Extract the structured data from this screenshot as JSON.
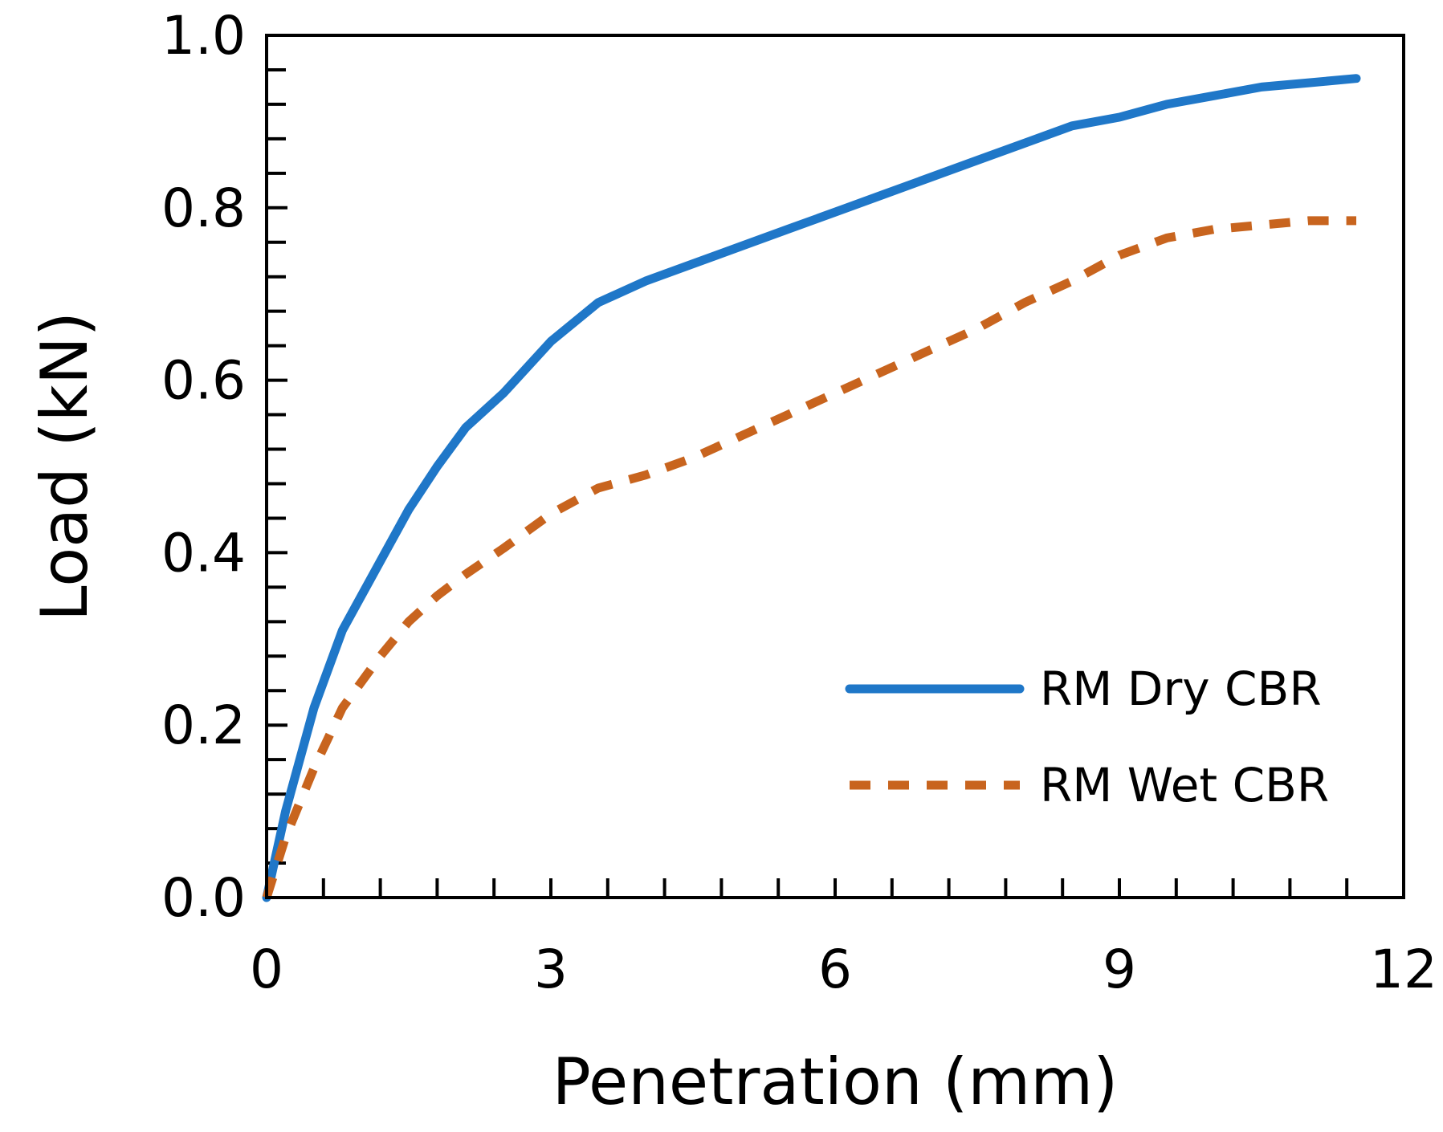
{
  "chart_data": {
    "type": "line",
    "title": "",
    "xlabel": "Penetration (mm)",
    "ylabel": "Load (kN)",
    "xlim": [
      0,
      12
    ],
    "ylim": [
      0,
      1.0
    ],
    "x_ticks": [
      0,
      3,
      6,
      9,
      12
    ],
    "x_tick_labels": [
      "0",
      "3",
      "6",
      "9",
      "12"
    ],
    "x_minor_step": 0.6,
    "y_ticks": [
      0,
      0.2,
      0.4,
      0.6,
      0.8,
      1.0
    ],
    "y_tick_labels": [
      "0.0",
      "0.2",
      "0.4",
      "0.6",
      "0.8",
      "1.0"
    ],
    "y_minor_step": 0.04,
    "grid": false,
    "legend_position": "lower-right",
    "series": [
      {
        "name": "RM Dry CBR",
        "color": "#1f77c8",
        "style": "solid",
        "x": [
          0,
          0.2,
          0.5,
          0.8,
          1.2,
          1.5,
          1.8,
          2.1,
          2.5,
          3.0,
          3.5,
          4.0,
          4.5,
          5.0,
          5.5,
          6.0,
          6.5,
          7.0,
          7.5,
          8.0,
          8.5,
          9.0,
          9.5,
          10.0,
          10.5,
          11.0,
          11.5
        ],
        "y": [
          0.0,
          0.1,
          0.22,
          0.31,
          0.39,
          0.45,
          0.5,
          0.545,
          0.585,
          0.645,
          0.69,
          0.715,
          0.735,
          0.755,
          0.775,
          0.795,
          0.815,
          0.835,
          0.855,
          0.875,
          0.895,
          0.905,
          0.92,
          0.93,
          0.94,
          0.945,
          0.95
        ]
      },
      {
        "name": "RM Wet CBR",
        "color": "#c8641e",
        "style": "dashed",
        "x": [
          0,
          0.2,
          0.5,
          0.8,
          1.2,
          1.5,
          1.8,
          2.1,
          2.5,
          3.0,
          3.5,
          4.0,
          4.5,
          5.0,
          5.5,
          6.0,
          6.5,
          7.0,
          7.5,
          8.0,
          8.5,
          9.0,
          9.5,
          10.0,
          10.5,
          11.0,
          11.5
        ],
        "y": [
          0.0,
          0.07,
          0.15,
          0.22,
          0.28,
          0.32,
          0.35,
          0.375,
          0.405,
          0.445,
          0.475,
          0.49,
          0.51,
          0.535,
          0.56,
          0.585,
          0.61,
          0.635,
          0.66,
          0.69,
          0.715,
          0.745,
          0.765,
          0.775,
          0.78,
          0.785,
          0.785
        ]
      }
    ]
  }
}
